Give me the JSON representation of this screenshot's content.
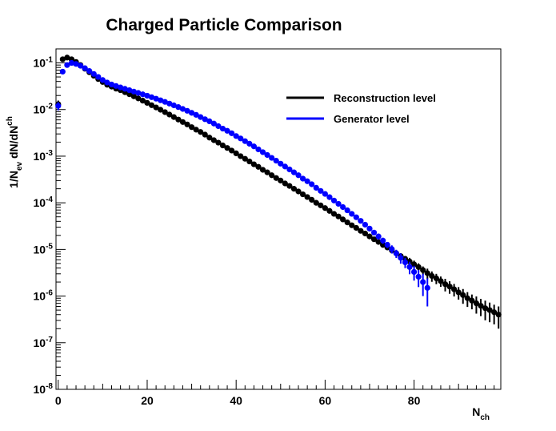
{
  "chart_data": {
    "type": "scatter",
    "title": "Charged Particle Comparison",
    "xlabel": {
      "main": "N",
      "sub": "ch"
    },
    "ylabel": {
      "p1": "1/N",
      "s1": "ev",
      "p2": " dN/dN",
      "s2": "ch"
    },
    "xlim": [
      -0.5,
      99.5
    ],
    "ylim": [
      1e-08,
      0.2
    ],
    "yscale": "log",
    "grid": false,
    "legend_position": "top-right",
    "x_ticks": [
      0,
      20,
      40,
      60,
      80
    ],
    "x_tick_labels": [
      "0",
      "20",
      "40",
      "60",
      "80"
    ],
    "y_ticks": [
      1e-08,
      1e-07,
      1e-06,
      1e-05,
      0.0001,
      0.001,
      0.01,
      0.1
    ],
    "y_tick_labels": [
      {
        "base": "10",
        "exp": "-8"
      },
      {
        "base": "10",
        "exp": "-7"
      },
      {
        "base": "10",
        "exp": "-6"
      },
      {
        "base": "10",
        "exp": "-5"
      },
      {
        "base": "10",
        "exp": "-4"
      },
      {
        "base": "10",
        "exp": "-3"
      },
      {
        "base": "10",
        "exp": "-2"
      },
      {
        "base": "10",
        "exp": "-1"
      }
    ],
    "series": [
      {
        "name": "Reconstruction level",
        "color": "#000000",
        "points": [
          [
            0,
            0.013,
            0.2
          ],
          [
            1,
            0.12,
            0.05
          ],
          [
            2,
            0.13,
            0.05
          ],
          [
            3,
            0.12,
            0.05
          ],
          [
            4,
            0.105,
            0.05
          ],
          [
            5,
            0.09,
            0.05
          ],
          [
            6,
            0.075,
            0.05
          ],
          [
            7,
            0.063,
            0.05
          ],
          [
            8,
            0.053,
            0.05
          ],
          [
            9,
            0.045,
            0.05
          ],
          [
            10,
            0.039,
            0.05
          ],
          [
            11,
            0.034,
            0.05
          ],
          [
            12,
            0.031,
            0.05
          ],
          [
            13,
            0.028,
            0.05
          ],
          [
            14,
            0.026,
            0.05
          ],
          [
            15,
            0.0235,
            0.05
          ],
          [
            16,
            0.0213,
            0.05
          ],
          [
            17,
            0.0192,
            0.05
          ],
          [
            18,
            0.0173,
            0.05
          ],
          [
            19,
            0.0155,
            0.05
          ],
          [
            20,
            0.0139,
            0.05
          ],
          [
            21,
            0.0124,
            0.05
          ],
          [
            22,
            0.0111,
            0.05
          ],
          [
            23,
            0.0099,
            0.05
          ],
          [
            24,
            0.0088,
            0.05
          ],
          [
            25,
            0.0078,
            0.05
          ],
          [
            26,
            0.0069,
            0.05
          ],
          [
            27,
            0.0061,
            0.05
          ],
          [
            28,
            0.0054,
            0.05
          ],
          [
            29,
            0.0048,
            0.05
          ],
          [
            30,
            0.0042,
            0.05
          ],
          [
            31,
            0.0037,
            0.05
          ],
          [
            32,
            0.0033,
            0.05
          ],
          [
            33,
            0.0029,
            0.05
          ],
          [
            34,
            0.0025,
            0.05
          ],
          [
            35,
            0.0022,
            0.05
          ],
          [
            36,
            0.00195,
            0.05
          ],
          [
            37,
            0.0017,
            0.05
          ],
          [
            38,
            0.0015,
            0.05
          ],
          [
            39,
            0.00132,
            0.05
          ],
          [
            40,
            0.00115,
            0.05
          ],
          [
            41,
            0.001,
            0.05
          ],
          [
            42,
            0.00088,
            0.05
          ],
          [
            43,
            0.00077,
            0.05
          ],
          [
            44,
            0.00067,
            0.05
          ],
          [
            45,
            0.00059,
            0.05
          ],
          [
            46,
            0.00051,
            0.05
          ],
          [
            47,
            0.00045,
            0.05
          ],
          [
            48,
            0.00039,
            0.05
          ],
          [
            49,
            0.00034,
            0.05
          ],
          [
            50,
            0.0003,
            0.05
          ],
          [
            51,
            0.00026,
            0.05
          ],
          [
            52,
            0.00023,
            0.05
          ],
          [
            53,
            0.0002,
            0.05
          ],
          [
            54,
            0.000175,
            0.05
          ],
          [
            55,
            0.000152,
            0.05
          ],
          [
            56,
            0.000133,
            0.05
          ],
          [
            57,
            0.000116,
            0.05
          ],
          [
            58,
            0.0001,
            0.05
          ],
          [
            59,
            8.8e-05,
            0.05
          ],
          [
            60,
            7.7e-05,
            0.05
          ],
          [
            61,
            6.7e-05,
            0.05
          ],
          [
            62,
            5.8e-05,
            0.05
          ],
          [
            63,
            5.1e-05,
            0.05
          ],
          [
            64,
            4.4e-05,
            0.05
          ],
          [
            65,
            3.8e-05,
            0.05
          ],
          [
            66,
            3.3e-05,
            0.05
          ],
          [
            67,
            2.9e-05,
            0.05
          ],
          [
            68,
            2.5e-05,
            0.05
          ],
          [
            69,
            2.2e-05,
            0.05
          ],
          [
            70,
            1.9e-05,
            0.1
          ],
          [
            71,
            1.65e-05,
            0.1
          ],
          [
            72,
            1.45e-05,
            0.1
          ],
          [
            73,
            1.25e-05,
            0.1
          ],
          [
            74,
            1.1e-05,
            0.1
          ],
          [
            75,
            9.6e-06,
            0.15
          ],
          [
            76,
            8.3e-06,
            0.15
          ],
          [
            77,
            7.2e-06,
            0.15
          ],
          [
            78,
            6.3e-06,
            0.15
          ],
          [
            79,
            5.5e-06,
            0.2
          ],
          [
            80,
            4.8e-06,
            0.2
          ],
          [
            81,
            4.2e-06,
            0.2
          ],
          [
            82,
            3.6e-06,
            0.2
          ],
          [
            83,
            3.1e-06,
            0.25
          ],
          [
            84,
            2.7e-06,
            0.25
          ],
          [
            85,
            2.4e-06,
            0.25
          ],
          [
            86,
            2.1e-06,
            0.25
          ],
          [
            87,
            1.8e-06,
            0.3
          ],
          [
            88,
            1.6e-06,
            0.3
          ],
          [
            89,
            1.4e-06,
            0.3
          ],
          [
            90,
            1.2e-06,
            0.3
          ],
          [
            91,
            1.05e-06,
            0.35
          ],
          [
            92,
            9e-07,
            0.35
          ],
          [
            93,
            8e-07,
            0.35
          ],
          [
            94,
            7e-07,
            0.4
          ],
          [
            95,
            6.2e-07,
            0.4
          ],
          [
            96,
            5.5e-07,
            0.45
          ],
          [
            97,
            5e-07,
            0.45
          ],
          [
            98,
            4.5e-07,
            0.45
          ],
          [
            99,
            4e-07,
            0.5
          ]
        ]
      },
      {
        "name": "Generator level",
        "color": "#0000ff",
        "points": [
          [
            0,
            0.012,
            0.2
          ],
          [
            1,
            0.065,
            0.05
          ],
          [
            2,
            0.09,
            0.05
          ],
          [
            3,
            0.1,
            0.05
          ],
          [
            4,
            0.095,
            0.05
          ],
          [
            5,
            0.087,
            0.05
          ],
          [
            6,
            0.077,
            0.05
          ],
          [
            7,
            0.067,
            0.05
          ],
          [
            8,
            0.058,
            0.05
          ],
          [
            9,
            0.05,
            0.05
          ],
          [
            10,
            0.043,
            0.05
          ],
          [
            11,
            0.038,
            0.05
          ],
          [
            12,
            0.0345,
            0.05
          ],
          [
            13,
            0.032,
            0.05
          ],
          [
            14,
            0.0298,
            0.05
          ],
          [
            15,
            0.0278,
            0.05
          ],
          [
            16,
            0.026,
            0.05
          ],
          [
            17,
            0.0243,
            0.05
          ],
          [
            18,
            0.0227,
            0.05
          ],
          [
            19,
            0.0212,
            0.05
          ],
          [
            20,
            0.0198,
            0.05
          ],
          [
            21,
            0.0184,
            0.05
          ],
          [
            22,
            0.0171,
            0.05
          ],
          [
            23,
            0.0158,
            0.05
          ],
          [
            24,
            0.0146,
            0.05
          ],
          [
            25,
            0.0134,
            0.05
          ],
          [
            26,
            0.0123,
            0.05
          ],
          [
            27,
            0.0113,
            0.05
          ],
          [
            28,
            0.0103,
            0.05
          ],
          [
            29,
            0.0094,
            0.05
          ],
          [
            30,
            0.0085,
            0.05
          ],
          [
            31,
            0.0077,
            0.05
          ],
          [
            32,
            0.0069,
            0.05
          ],
          [
            33,
            0.0062,
            0.05
          ],
          [
            34,
            0.0056,
            0.05
          ],
          [
            35,
            0.005,
            0.05
          ],
          [
            36,
            0.0044,
            0.05
          ],
          [
            37,
            0.0039,
            0.05
          ],
          [
            38,
            0.0035,
            0.05
          ],
          [
            39,
            0.0031,
            0.05
          ],
          [
            40,
            0.0027,
            0.05
          ],
          [
            41,
            0.0024,
            0.05
          ],
          [
            42,
            0.0021,
            0.05
          ],
          [
            43,
            0.00185,
            0.05
          ],
          [
            44,
            0.00162,
            0.05
          ],
          [
            45,
            0.0014,
            0.05
          ],
          [
            46,
            0.00122,
            0.05
          ],
          [
            47,
            0.00106,
            0.05
          ],
          [
            48,
            0.00092,
            0.05
          ],
          [
            49,
            0.0008,
            0.05
          ],
          [
            50,
            0.00069,
            0.05
          ],
          [
            51,
            0.0006,
            0.05
          ],
          [
            52,
            0.00052,
            0.05
          ],
          [
            53,
            0.00045,
            0.05
          ],
          [
            54,
            0.00039,
            0.05
          ],
          [
            55,
            0.00033,
            0.05
          ],
          [
            56,
            0.00029,
            0.05
          ],
          [
            57,
            0.00025,
            0.05
          ],
          [
            58,
            0.00021,
            0.05
          ],
          [
            59,
            0.00018,
            0.05
          ],
          [
            60,
            0.000155,
            0.05
          ],
          [
            61,
            0.000132,
            0.05
          ],
          [
            62,
            0.000112,
            0.05
          ],
          [
            63,
            9.5e-05,
            0.05
          ],
          [
            64,
            8.1e-05,
            0.05
          ],
          [
            65,
            6.9e-05,
            0.05
          ],
          [
            66,
            5.8e-05,
            0.05
          ],
          [
            67,
            4.9e-05,
            0.05
          ],
          [
            68,
            4.1e-05,
            0.1
          ],
          [
            69,
            3.4e-05,
            0.1
          ],
          [
            70,
            2.8e-05,
            0.1
          ],
          [
            71,
            2.3e-05,
            0.1
          ],
          [
            72,
            1.9e-05,
            0.15
          ],
          [
            73,
            1.55e-05,
            0.15
          ],
          [
            74,
            1.26e-05,
            0.15
          ],
          [
            75,
            1.02e-05,
            0.2
          ],
          [
            76,
            8.2e-06,
            0.2
          ],
          [
            77,
            6.6e-06,
            0.25
          ],
          [
            78,
            5.3e-06,
            0.25
          ],
          [
            79,
            4.2e-06,
            0.3
          ],
          [
            80,
            3.3e-06,
            0.35
          ],
          [
            81,
            2.6e-06,
            0.4
          ],
          [
            82,
            2e-06,
            0.5
          ],
          [
            83,
            1.5e-06,
            0.6
          ]
        ]
      }
    ]
  }
}
